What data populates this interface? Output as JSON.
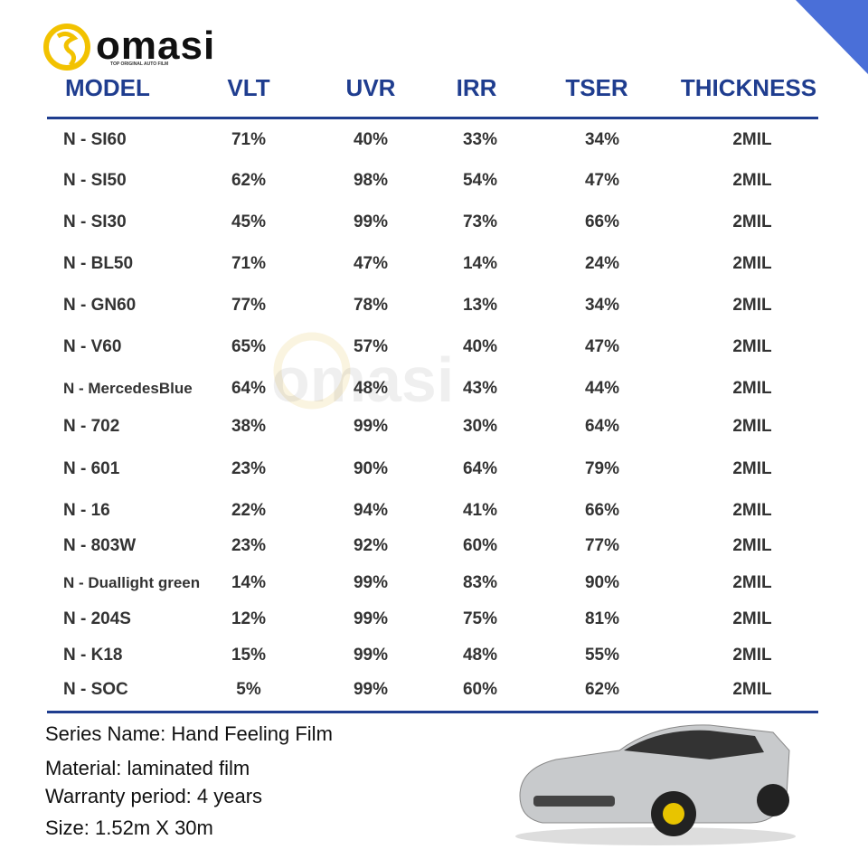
{
  "logo": {
    "brand": "omasi",
    "tagline": "TOP ORIGINAL AUTO FILM"
  },
  "table": {
    "headers": [
      "MODEL",
      "VLT",
      "UVR",
      "IRR",
      "TSER",
      "THICKNESS"
    ],
    "rows": [
      [
        "N - SI60",
        "71%",
        "40%",
        "33%",
        "34%",
        "2MIL"
      ],
      [
        "N - SI50",
        "62%",
        "98%",
        "54%",
        "47%",
        "2MIL"
      ],
      [
        "N - SI30",
        "45%",
        "99%",
        "73%",
        "66%",
        "2MIL"
      ],
      [
        "N - BL50",
        "71%",
        "47%",
        "14%",
        "24%",
        "2MIL"
      ],
      [
        "N - GN60",
        "77%",
        "78%",
        "13%",
        "34%",
        "2MIL"
      ],
      [
        "N - V60",
        "65%",
        "57%",
        "40%",
        "47%",
        "2MIL"
      ],
      [
        "N - MercedesBlue",
        "64%",
        "48%",
        "43%",
        "44%",
        "2MIL"
      ],
      [
        "N - 702",
        "38%",
        "99%",
        "30%",
        "64%",
        "2MIL"
      ],
      [
        "N - 601",
        "23%",
        "90%",
        "64%",
        "79%",
        "2MIL"
      ],
      [
        "N - 16",
        "22%",
        "94%",
        "41%",
        "66%",
        "2MIL"
      ],
      [
        "N - 803W",
        "23%",
        "92%",
        "60%",
        "77%",
        "2MIL"
      ],
      [
        "N - Duallight green",
        "14%",
        "99%",
        "83%",
        "90%",
        "2MIL"
      ],
      [
        "N - 204S",
        "12%",
        "99%",
        "75%",
        "81%",
        "2MIL"
      ],
      [
        "N - K18",
        "15%",
        "99%",
        "48%",
        "55%",
        "2MIL"
      ],
      [
        "N - SOC",
        "5%",
        "99%",
        "60%",
        "62%",
        "2MIL"
      ]
    ]
  },
  "info": [
    "Series Name: Hand Feeling Film",
    "Material: laminated film",
    "Warranty period: 4 years",
    "Size: 1.52m X 30m"
  ]
}
